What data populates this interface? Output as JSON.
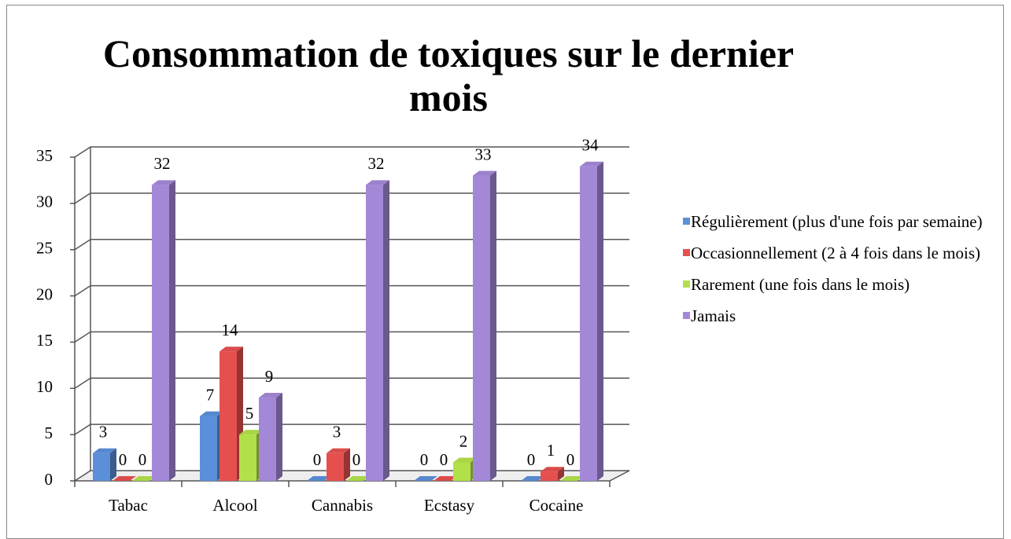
{
  "chart_data": {
    "type": "bar3d",
    "title": "Consommation de toxiques sur le dernier mois",
    "categories": [
      "Tabac",
      "Alcool",
      "Cannabis",
      "Ecstasy",
      "Cocaine"
    ],
    "series": [
      {
        "name": "Régulièrement (plus d'une fois par semaine)",
        "color": "#5b8fd9",
        "values": [
          3,
          7,
          0,
          0,
          0
        ]
      },
      {
        "name": "Occasionnellement (2 à 4 fois dans le mois)",
        "color": "#e5504f",
        "values": [
          0,
          14,
          3,
          0,
          1
        ]
      },
      {
        "name": "Rarement (une fois dans le mois)",
        "color": "#b2e04a",
        "values": [
          0,
          5,
          0,
          2,
          0
        ]
      },
      {
        "name": "Jamais",
        "color": "#a488d8",
        "values": [
          32,
          9,
          32,
          33,
          34
        ]
      }
    ],
    "ylim": [
      0,
      35
    ],
    "yticks": [
      0,
      5,
      10,
      15,
      20,
      25,
      30,
      35
    ],
    "grid": true,
    "legend": "right"
  }
}
